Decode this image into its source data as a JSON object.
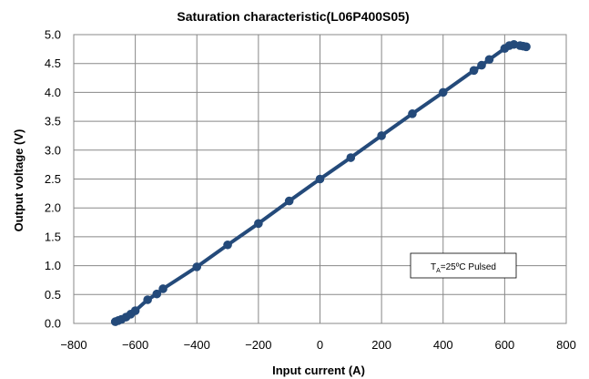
{
  "chart_data": {
    "type": "line",
    "title": "Saturation characteristic(L06P400S05)",
    "xlabel": "Input current (A)",
    "ylabel": "Output voltage (V)",
    "xlim": [
      -800,
      800
    ],
    "ylim": [
      0,
      5
    ],
    "xticks": [
      -800,
      -600,
      -400,
      -200,
      0,
      200,
      400,
      600,
      800
    ],
    "yticks": [
      0.0,
      0.5,
      1.0,
      1.5,
      2.0,
      2.5,
      3.0,
      3.5,
      4.0,
      4.5,
      5.0
    ],
    "xtick_labels": [
      "−800",
      "−600",
      "−400",
      "−200",
      "0",
      "200",
      "400",
      "600",
      "800"
    ],
    "ytick_labels": [
      "0.0",
      "0.5",
      "1.0",
      "1.5",
      "2.0",
      "2.5",
      "3.0",
      "3.5",
      "4.0",
      "4.5",
      "5.0"
    ],
    "grid": true,
    "series": [
      {
        "color": "#244a7a",
        "x": [
          -665,
          -655,
          -645,
          -630,
          -615,
          -600,
          -560,
          -530,
          -510,
          -400,
          -300,
          -200,
          -100,
          0,
          100,
          200,
          300,
          400,
          500,
          525,
          550,
          600,
          615,
          630,
          650,
          660,
          670
        ],
        "y": [
          0.03,
          0.05,
          0.07,
          0.11,
          0.16,
          0.22,
          0.41,
          0.51,
          0.6,
          0.98,
          1.36,
          1.73,
          2.12,
          2.5,
          2.87,
          3.25,
          3.63,
          4.0,
          4.38,
          4.47,
          4.57,
          4.76,
          4.81,
          4.83,
          4.81,
          4.8,
          4.79
        ]
      }
    ],
    "annotation": {
      "prefix": "T",
      "subscript": "A",
      "suffix": "=25ºC Pulsed"
    }
  }
}
